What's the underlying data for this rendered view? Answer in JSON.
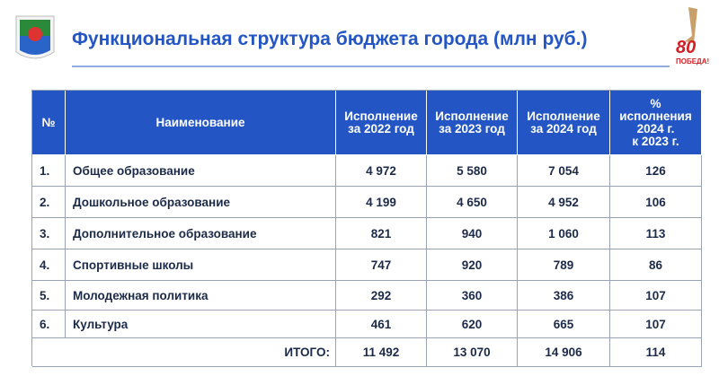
{
  "header": {
    "title": "Функциональная структура бюджета города (млн руб.)",
    "badge": {
      "number": "80",
      "text": "ПОБЕДА!"
    }
  },
  "table": {
    "columns": [
      [
        "№"
      ],
      [
        "Наименование"
      ],
      [
        "Исполнение",
        "за 2022 год"
      ],
      [
        "Исполнение",
        "за 2023 год"
      ],
      [
        "Исполнение",
        "за 2024 год"
      ],
      [
        "%",
        "исполнения",
        "2024 г.",
        "к 2023 г."
      ]
    ],
    "rows": [
      [
        "1.",
        "Общее образование",
        "4 972",
        "5 580",
        "7 054",
        "126"
      ],
      [
        "2.",
        "Дошкольное образование",
        "4 199",
        "4 650",
        "4 952",
        "106"
      ],
      [
        "3.",
        "Дополнительное образование",
        "821",
        "940",
        "1 060",
        "113"
      ],
      [
        "4.",
        "Спортивные школы",
        "747",
        "920",
        "789",
        "86"
      ],
      [
        "5.",
        "Молодежная политика",
        "292",
        "360",
        "386",
        "107"
      ],
      [
        "6.",
        "Культура",
        "461",
        "620",
        "665",
        "107"
      ]
    ],
    "total": {
      "label": "ИТОГО:",
      "values": [
        "11 492",
        "13 070",
        "14 906",
        "114"
      ]
    }
  }
}
